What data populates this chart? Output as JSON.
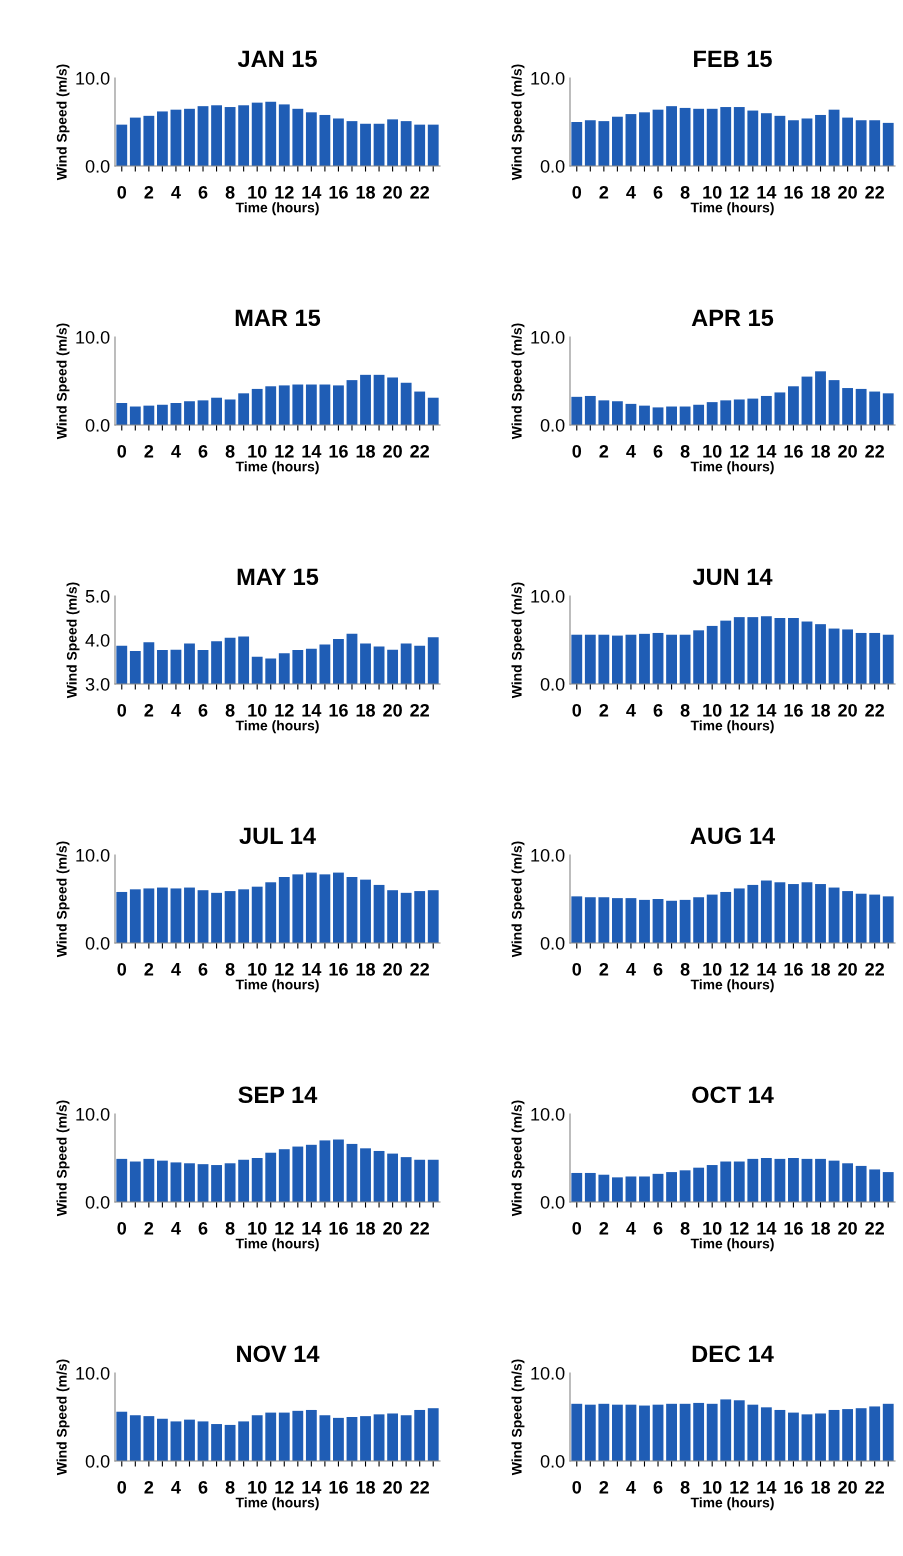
{
  "chart_data": [
    {
      "type": "bar",
      "title": "JAN 15",
      "xlabel": "Time (hours)",
      "ylabel": "Wind Speed (m/s)",
      "categories": [
        "0",
        null,
        "2",
        null,
        "4",
        null,
        "6",
        null,
        "8",
        null,
        "10",
        null,
        "12",
        null,
        "14",
        null,
        "16",
        null,
        "18",
        null,
        "20",
        null,
        "22",
        null
      ],
      "values": [
        4.7,
        5.5,
        5.7,
        6.2,
        6.4,
        6.5,
        6.8,
        6.9,
        6.7,
        6.9,
        7.2,
        7.3,
        7.0,
        6.5,
        6.1,
        5.8,
        5.4,
        5.1,
        4.8,
        4.8,
        5.3,
        5.1,
        4.7,
        4.7
      ],
      "color": "#1f5db5",
      "ylim": [
        0,
        10
      ],
      "yticks": [
        {
          "value": 0,
          "label": "0.0"
        },
        {
          "value": 10,
          "label": "10.0"
        }
      ],
      "grid": false
    },
    {
      "type": "bar",
      "title": "FEB 15",
      "xlabel": "Time (hours)",
      "ylabel": "Wind Speed (m/s)",
      "categories": [
        "0",
        null,
        "2",
        null,
        "4",
        null,
        "6",
        null,
        "8",
        null,
        "10",
        null,
        "12",
        null,
        "14",
        null,
        "16",
        null,
        "18",
        null,
        "20",
        null,
        "22",
        null
      ],
      "values": [
        5.0,
        5.2,
        5.1,
        5.6,
        5.9,
        6.1,
        6.4,
        6.8,
        6.6,
        6.5,
        6.5,
        6.7,
        6.7,
        6.3,
        6.0,
        5.7,
        5.2,
        5.4,
        5.8,
        6.4,
        5.5,
        5.2,
        5.2,
        4.9
      ],
      "color": "#1f5db5",
      "ylim": [
        0,
        10
      ],
      "yticks": [
        {
          "value": 0,
          "label": "0.0"
        },
        {
          "value": 10,
          "label": "10.0"
        }
      ],
      "grid": false
    },
    {
      "type": "bar",
      "title": "MAR 15",
      "xlabel": "Time (hours)",
      "ylabel": "Wind Speed (m/s)",
      "categories": [
        "0",
        null,
        "2",
        null,
        "4",
        null,
        "6",
        null,
        "8",
        null,
        "10",
        null,
        "12",
        null,
        "14",
        null,
        "16",
        null,
        "18",
        null,
        "20",
        null,
        "22",
        null
      ],
      "values": [
        2.5,
        2.1,
        2.2,
        2.3,
        2.5,
        2.7,
        2.8,
        3.1,
        2.9,
        3.6,
        4.1,
        4.4,
        4.5,
        4.6,
        4.6,
        4.6,
        4.5,
        5.1,
        5.7,
        5.7,
        5.4,
        4.8,
        3.8,
        3.1
      ],
      "color": "#1f5db5",
      "ylim": [
        0,
        10
      ],
      "yticks": [
        {
          "value": 0,
          "label": "0.0"
        },
        {
          "value": 10,
          "label": "10.0"
        }
      ],
      "grid": false
    },
    {
      "type": "bar",
      "title": "APR 15",
      "xlabel": "Time (hours)",
      "ylabel": "Wind Speed (m/s)",
      "categories": [
        "0",
        null,
        "2",
        null,
        "4",
        null,
        "6",
        null,
        "8",
        null,
        "10",
        null,
        "12",
        null,
        "14",
        null,
        "16",
        null,
        "18",
        null,
        "20",
        null,
        "22",
        null
      ],
      "values": [
        3.2,
        3.3,
        2.8,
        2.7,
        2.4,
        2.2,
        2.0,
        2.1,
        2.1,
        2.3,
        2.6,
        2.8,
        2.9,
        3.0,
        3.3,
        3.7,
        4.4,
        5.5,
        6.1,
        5.1,
        4.2,
        4.1,
        3.8,
        3.6
      ],
      "color": "#1f5db5",
      "ylim": [
        0,
        10
      ],
      "yticks": [
        {
          "value": 0,
          "label": "0.0"
        },
        {
          "value": 10,
          "label": "10.0"
        }
      ],
      "grid": false
    },
    {
      "type": "bar",
      "title": "MAY 15",
      "xlabel": "Time (hours)",
      "ylabel": "Wind Speed (m/s)",
      "categories": [
        "0",
        null,
        "2",
        null,
        "4",
        null,
        "6",
        null,
        "8",
        null,
        "10",
        null,
        "12",
        null,
        "14",
        null,
        "16",
        null,
        "18",
        null,
        "20",
        null,
        "22",
        null
      ],
      "values": [
        3.87,
        3.75,
        3.95,
        3.77,
        3.78,
        3.92,
        3.77,
        3.97,
        4.05,
        4.08,
        3.62,
        3.58,
        3.7,
        3.77,
        3.8,
        3.9,
        4.02,
        4.14,
        3.92,
        3.85,
        3.78,
        3.92,
        3.87,
        4.06
      ],
      "color": "#1f5db5",
      "ylim": [
        3,
        5
      ],
      "yticks": [
        {
          "value": 3,
          "label": "3.0"
        },
        {
          "value": 4,
          "label": "4.0"
        },
        {
          "value": 5,
          "label": "5.0"
        }
      ],
      "grid": false
    },
    {
      "type": "bar",
      "title": "JUN 14",
      "xlabel": "Time (hours)",
      "ylabel": "Wind Speed (m/s)",
      "categories": [
        "0",
        null,
        "2",
        null,
        "4",
        null,
        "6",
        null,
        "8",
        null,
        "10",
        null,
        "12",
        null,
        "14",
        null,
        "16",
        null,
        "18",
        null,
        "20",
        null,
        "22",
        null
      ],
      "values": [
        5.6,
        5.6,
        5.6,
        5.5,
        5.6,
        5.7,
        5.8,
        5.6,
        5.6,
        6.1,
        6.6,
        7.2,
        7.6,
        7.6,
        7.7,
        7.5,
        7.5,
        7.1,
        6.8,
        6.3,
        6.2,
        5.8,
        5.8,
        5.6
      ],
      "color": "#1f5db5",
      "ylim": [
        0,
        10
      ],
      "yticks": [
        {
          "value": 0,
          "label": "0.0"
        },
        {
          "value": 10,
          "label": "10.0"
        }
      ],
      "grid": false
    },
    {
      "type": "bar",
      "title": "JUL 14",
      "xlabel": "Time (hours)",
      "ylabel": "Wind Speed (m/s)",
      "categories": [
        "0",
        null,
        "2",
        null,
        "4",
        null,
        "6",
        null,
        "8",
        null,
        "10",
        null,
        "12",
        null,
        "14",
        null,
        "16",
        null,
        "18",
        null,
        "20",
        null,
        "22",
        null
      ],
      "values": [
        5.8,
        6.1,
        6.2,
        6.3,
        6.2,
        6.3,
        6.0,
        5.7,
        5.9,
        6.1,
        6.4,
        6.9,
        7.5,
        7.8,
        8.0,
        7.8,
        8.0,
        7.5,
        7.2,
        6.6,
        6.0,
        5.7,
        5.9,
        6.0
      ],
      "color": "#1f5db5",
      "ylim": [
        0,
        10
      ],
      "yticks": [
        {
          "value": 0,
          "label": "0.0"
        },
        {
          "value": 10,
          "label": "10.0"
        }
      ],
      "grid": false
    },
    {
      "type": "bar",
      "title": "AUG 14",
      "xlabel": "Time (hours)",
      "ylabel": "Wind Speed (m/s)",
      "categories": [
        "0",
        null,
        "2",
        null,
        "4",
        null,
        "6",
        null,
        "8",
        null,
        "10",
        null,
        "12",
        null,
        "14",
        null,
        "16",
        null,
        "18",
        null,
        "20",
        null,
        "22",
        null
      ],
      "values": [
        5.3,
        5.2,
        5.2,
        5.1,
        5.1,
        4.9,
        5.0,
        4.8,
        4.9,
        5.2,
        5.5,
        5.8,
        6.2,
        6.6,
        7.1,
        6.9,
        6.7,
        6.9,
        6.7,
        6.3,
        5.9,
        5.6,
        5.5,
        5.3
      ],
      "color": "#1f5db5",
      "ylim": [
        0,
        10
      ],
      "yticks": [
        {
          "value": 0,
          "label": "0.0"
        },
        {
          "value": 10,
          "label": "10.0"
        }
      ],
      "grid": false
    },
    {
      "type": "bar",
      "title": "SEP 14",
      "xlabel": "Time (hours)",
      "ylabel": "Wind Speed (m/s)",
      "categories": [
        "0",
        null,
        "2",
        null,
        "4",
        null,
        "6",
        null,
        "8",
        null,
        "10",
        null,
        "12",
        null,
        "14",
        null,
        "16",
        null,
        "18",
        null,
        "20",
        null,
        "22",
        null
      ],
      "values": [
        4.9,
        4.6,
        4.9,
        4.7,
        4.5,
        4.4,
        4.3,
        4.2,
        4.4,
        4.8,
        5.0,
        5.6,
        6.0,
        6.3,
        6.5,
        7.0,
        7.1,
        6.6,
        6.1,
        5.8,
        5.5,
        5.1,
        4.8,
        4.8
      ],
      "color": "#1f5db5",
      "ylim": [
        0,
        10
      ],
      "yticks": [
        {
          "value": 0,
          "label": "0.0"
        },
        {
          "value": 10,
          "label": "10.0"
        }
      ],
      "grid": false
    },
    {
      "type": "bar",
      "title": "OCT 14",
      "xlabel": "Time (hours)",
      "ylabel": "Wind Speed (m/s)",
      "categories": [
        "0",
        null,
        "2",
        null,
        "4",
        null,
        "6",
        null,
        "8",
        null,
        "10",
        null,
        "12",
        null,
        "14",
        null,
        "16",
        null,
        "18",
        null,
        "20",
        null,
        "22",
        null
      ],
      "values": [
        3.3,
        3.3,
        3.1,
        2.8,
        2.9,
        2.9,
        3.2,
        3.4,
        3.6,
        3.9,
        4.2,
        4.6,
        4.6,
        4.9,
        5.0,
        4.9,
        5.0,
        4.9,
        4.9,
        4.7,
        4.4,
        4.1,
        3.7,
        3.4
      ],
      "color": "#1f5db5",
      "ylim": [
        0,
        10
      ],
      "yticks": [
        {
          "value": 0,
          "label": "0.0"
        },
        {
          "value": 10,
          "label": "10.0"
        }
      ],
      "grid": false
    },
    {
      "type": "bar",
      "title": "NOV 14",
      "xlabel": "Time (hours)",
      "ylabel": "Wind Speed (m/s)",
      "categories": [
        "0",
        null,
        "2",
        null,
        "4",
        null,
        "6",
        null,
        "8",
        null,
        "10",
        null,
        "12",
        null,
        "14",
        null,
        "16",
        null,
        "18",
        null,
        "20",
        null,
        "22",
        null
      ],
      "values": [
        5.6,
        5.2,
        5.1,
        4.8,
        4.5,
        4.7,
        4.5,
        4.2,
        4.1,
        4.5,
        5.2,
        5.5,
        5.5,
        5.7,
        5.8,
        5.2,
        4.9,
        5.0,
        5.1,
        5.3,
        5.4,
        5.2,
        5.8,
        6.0
      ],
      "color": "#1f5db5",
      "ylim": [
        0,
        10
      ],
      "yticks": [
        {
          "value": 0,
          "label": "0.0"
        },
        {
          "value": 10,
          "label": "10.0"
        }
      ],
      "grid": false
    },
    {
      "type": "bar",
      "title": "DEC 14",
      "xlabel": "Time (hours)",
      "ylabel": "Wind Speed (m/s)",
      "categories": [
        "0",
        null,
        "2",
        null,
        "4",
        null,
        "6",
        null,
        "8",
        null,
        "10",
        null,
        "12",
        null,
        "14",
        null,
        "16",
        null,
        "18",
        null,
        "20",
        null,
        "22",
        null
      ],
      "values": [
        6.5,
        6.4,
        6.5,
        6.4,
        6.4,
        6.3,
        6.4,
        6.5,
        6.5,
        6.6,
        6.5,
        7.0,
        6.9,
        6.4,
        6.1,
        5.8,
        5.5,
        5.3,
        5.4,
        5.8,
        5.9,
        6.0,
        6.2,
        6.5
      ],
      "color": "#1f5db5",
      "ylim": [
        0,
        10
      ],
      "yticks": [
        {
          "value": 0,
          "label": "0.0"
        },
        {
          "value": 10,
          "label": "10.0"
        }
      ],
      "grid": false
    }
  ]
}
